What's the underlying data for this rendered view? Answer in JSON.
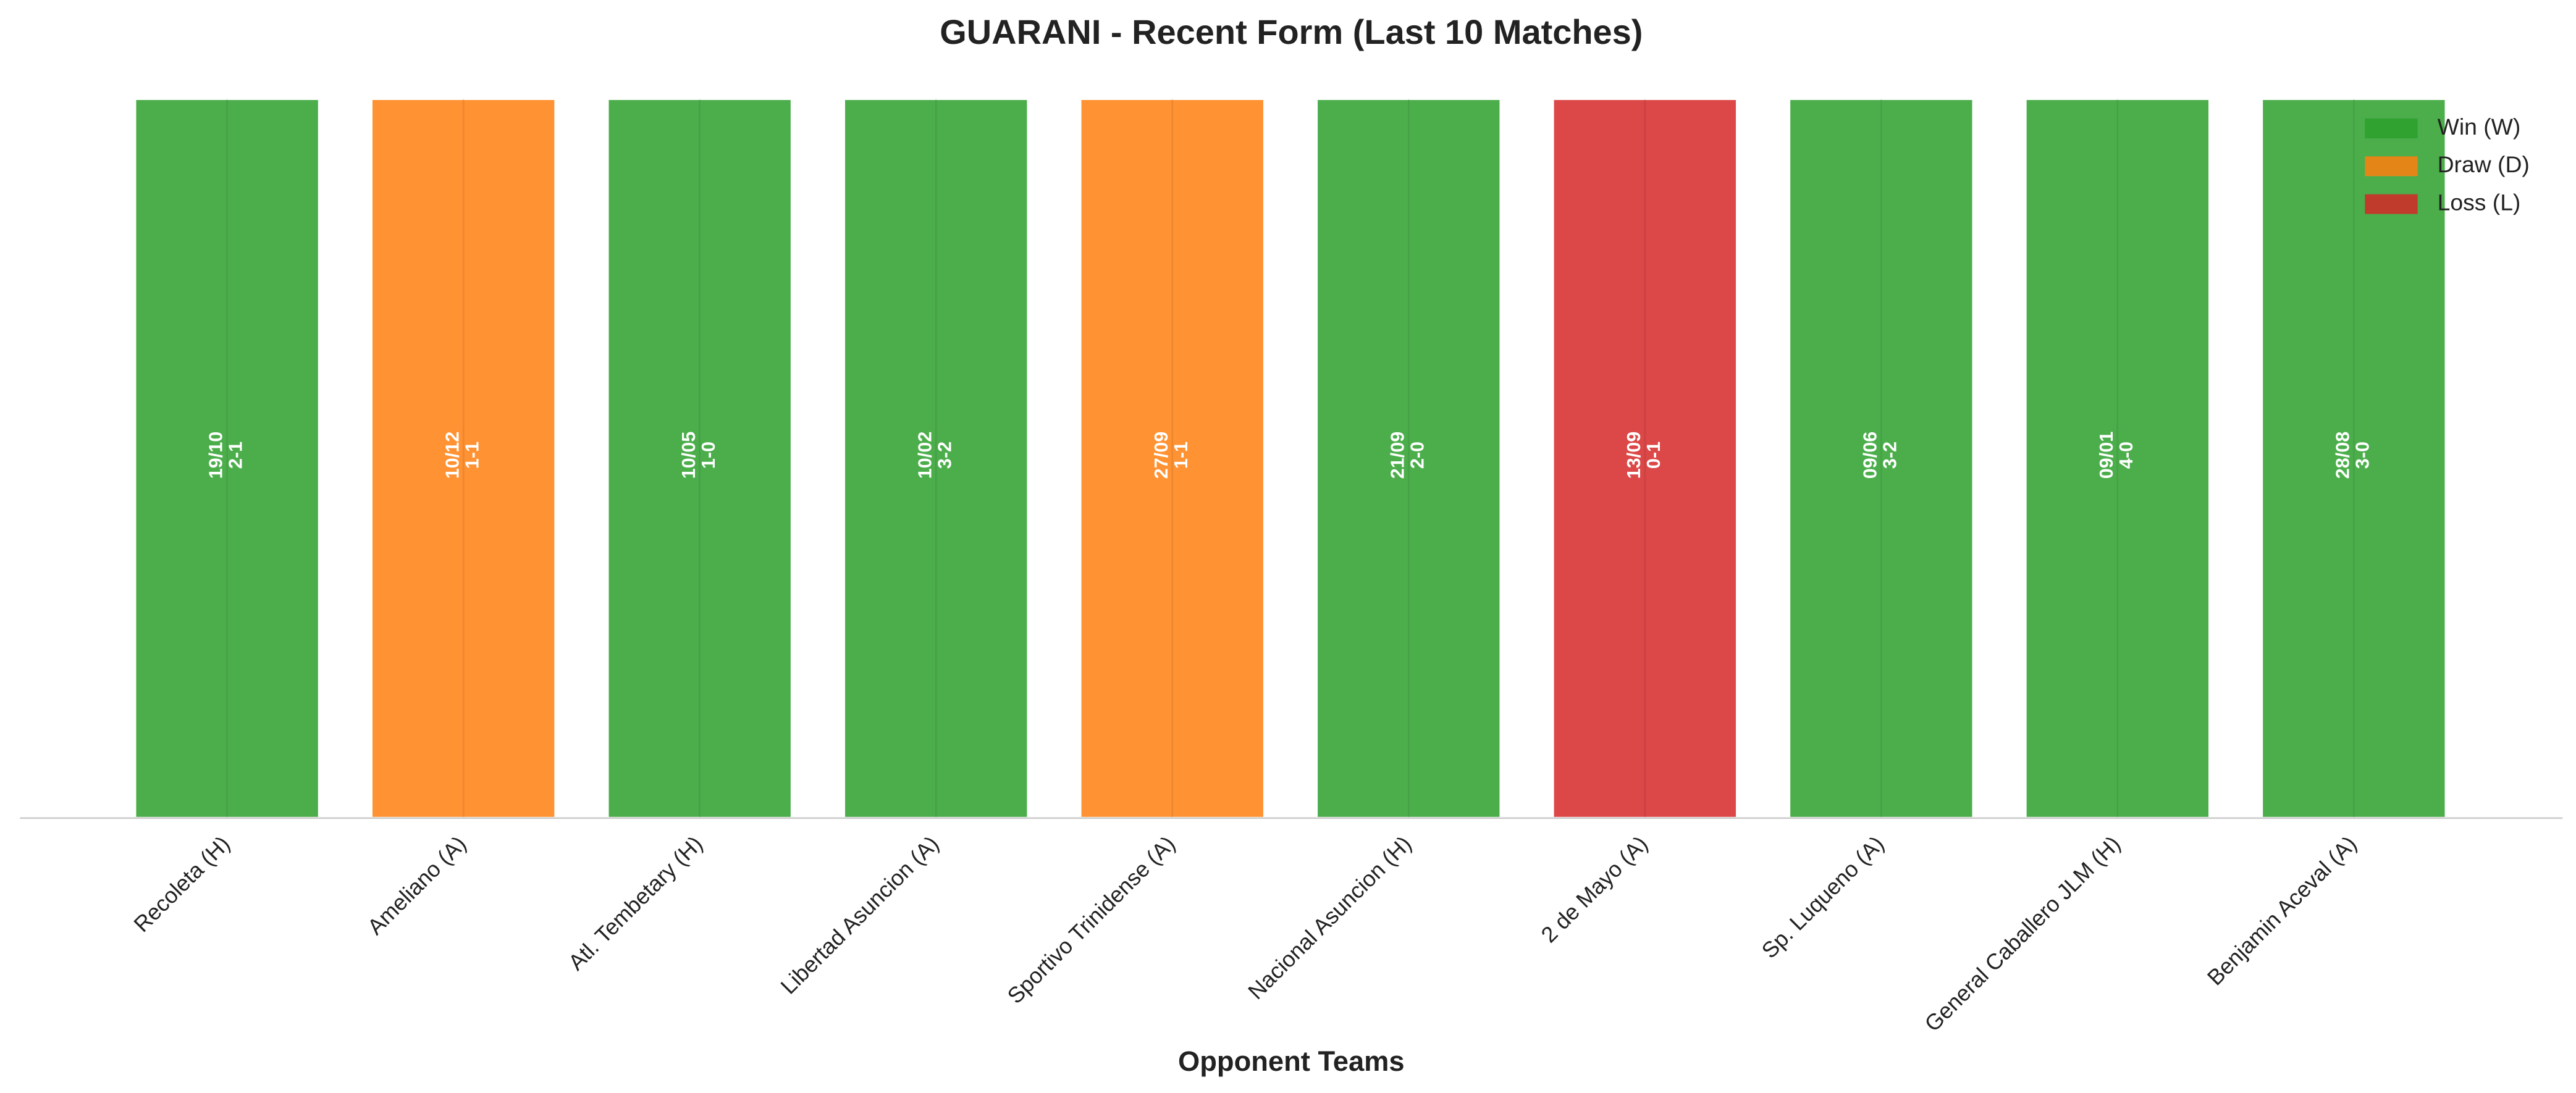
{
  "chart_data": {
    "type": "bar",
    "title": "GUARANI - Recent Form (Last 10 Matches)",
    "x_label": "Opponent Teams",
    "categories": [
      "Recoleta (H)",
      "Ameliano (A)",
      "Atl. Tembetary (H)",
      "Libertad Asuncion (A)",
      "Sportivo Trinidense (A)",
      "Nacional Asuncion (H)",
      "2 de Mayo (A)",
      "Sp. Luqueno (A)",
      "General Caballero JLM (H)",
      "Benjamin Aceval (A)"
    ],
    "values": [
      1,
      1,
      1,
      1,
      1,
      1,
      1,
      1,
      1,
      1
    ],
    "dates": [
      "19/10",
      "10/12",
      "10/05",
      "10/02",
      "27/09",
      "21/09",
      "13/09",
      "09/06",
      "09/01",
      "28/08"
    ],
    "scores": [
      "2-1",
      "1-1",
      "1-0",
      "3-2",
      "1-1",
      "2-0",
      "0-1",
      "3-2",
      "4-0",
      "3-0"
    ],
    "colors": [
      "#2ca02c",
      "#ff7f0e",
      "#2ca02c",
      "#2ca02c",
      "#ff7f0e",
      "#2ca02c",
      "#d62728",
      "#2ca02c",
      "#2ca02c",
      "#2ca02c"
    ],
    "ylim": [
      0,
      1
    ],
    "grid": true,
    "legend_position": "upper right",
    "legend": [
      {
        "name": "Win (W)",
        "color": "#2ca02c"
      },
      {
        "name": "Draw (D)",
        "color": "#ff7f0e"
      },
      {
        "name": "Loss (L)",
        "color": "#d62728"
      }
    ]
  }
}
